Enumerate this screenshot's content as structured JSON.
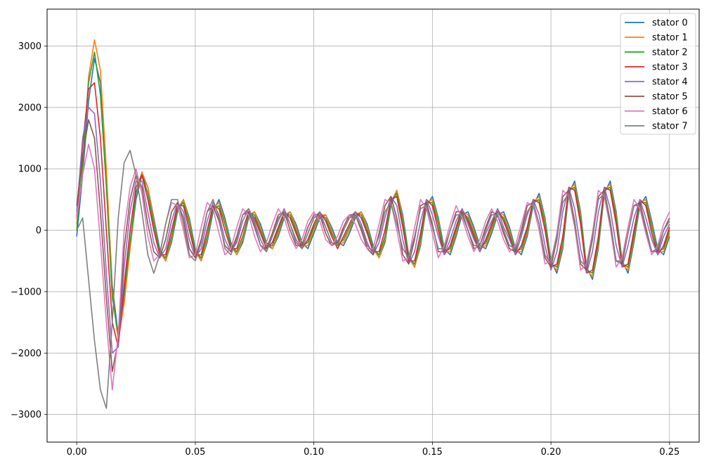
{
  "chart_data": {
    "type": "line",
    "title": "",
    "xlabel": "",
    "ylabel": "",
    "xlim": [
      -0.0125,
      0.2625
    ],
    "ylim": [
      -3450,
      3600
    ],
    "xticks": [
      0.0,
      0.05,
      0.1,
      0.15,
      0.2,
      0.25
    ],
    "xtick_labels": [
      "0.00",
      "0.05",
      "0.10",
      "0.15",
      "0.20",
      "0.25"
    ],
    "yticks": [
      -3000,
      -2000,
      -1000,
      0,
      1000,
      2000,
      3000
    ],
    "ytick_labels": [
      "−3000",
      "−2000",
      "−1000",
      "0",
      "1000",
      "2000",
      "3000"
    ],
    "grid": true,
    "legend_position": "top-right",
    "x": [
      0.0,
      0.0025,
      0.005,
      0.0075,
      0.01,
      0.0125,
      0.015,
      0.0175,
      0.02,
      0.0225,
      0.025,
      0.0275,
      0.03,
      0.0325,
      0.035,
      0.0375,
      0.04,
      0.0425,
      0.045,
      0.0475,
      0.05,
      0.0525,
      0.055,
      0.0575,
      0.06,
      0.0625,
      0.065,
      0.0675,
      0.07,
      0.0725,
      0.075,
      0.0775,
      0.08,
      0.0825,
      0.085,
      0.0875,
      0.09,
      0.0925,
      0.095,
      0.0975,
      0.1,
      0.1025,
      0.105,
      0.1075,
      0.11,
      0.1125,
      0.115,
      0.1175,
      0.12,
      0.1225,
      0.125,
      0.1275,
      0.13,
      0.1325,
      0.135,
      0.1375,
      0.14,
      0.1425,
      0.145,
      0.1475,
      0.15,
      0.1525,
      0.155,
      0.1575,
      0.16,
      0.1625,
      0.165,
      0.1675,
      0.17,
      0.1725,
      0.175,
      0.1775,
      0.18,
      0.1825,
      0.185,
      0.1875,
      0.19,
      0.1925,
      0.195,
      0.1975,
      0.2,
      0.2025,
      0.205,
      0.2075,
      0.21,
      0.2125,
      0.215,
      0.2175,
      0.22,
      0.2225,
      0.225,
      0.2275,
      0.23,
      0.2325,
      0.235,
      0.2375,
      0.24,
      0.2425,
      0.245,
      0.2475,
      0.25
    ],
    "series": [
      {
        "name": "stator 0",
        "color": "#1f77b4",
        "values": [
          -100,
          900,
          2100,
          2800,
          2400,
          900,
          -900,
          -1700,
          -1100,
          -300,
          500,
          900,
          700,
          200,
          -300,
          -500,
          -200,
          300,
          500,
          200,
          -300,
          -500,
          -200,
          300,
          500,
          200,
          -200,
          -400,
          -200,
          200,
          300,
          100,
          -200,
          -300,
          -100,
          200,
          300,
          100,
          -200,
          -300,
          -50,
          200,
          250,
          50,
          -200,
          -250,
          -50,
          200,
          300,
          100,
          -250,
          -450,
          -200,
          400,
          650,
          250,
          -400,
          -600,
          -250,
          400,
          550,
          200,
          -300,
          -400,
          -100,
          250,
          300,
          50,
          -250,
          -300,
          -50,
          250,
          300,
          50,
          -300,
          -400,
          -100,
          400,
          600,
          200,
          -500,
          -700,
          -300,
          600,
          800,
          300,
          -600,
          -800,
          -300,
          600,
          800,
          300,
          -500,
          -700,
          -200,
          400,
          550,
          150,
          -300,
          -400,
          -100
        ]
      },
      {
        "name": "stator 1",
        "color": "#ff7f0e",
        "values": [
          100,
          1000,
          2500,
          3100,
          2600,
          1000,
          -1000,
          -1800,
          -1200,
          -300,
          600,
          950,
          700,
          150,
          -350,
          -500,
          -150,
          350,
          500,
          150,
          -350,
          -500,
          -150,
          350,
          450,
          150,
          -250,
          -400,
          -150,
          250,
          300,
          50,
          -250,
          -300,
          -50,
          250,
          300,
          50,
          -250,
          -250,
          0,
          250,
          250,
          0,
          -250,
          -200,
          0,
          250,
          300,
          50,
          -300,
          -450,
          -150,
          450,
          650,
          200,
          -450,
          -600,
          -200,
          450,
          500,
          150,
          -350,
          -350,
          -50,
          300,
          250,
          0,
          -300,
          -250,
          0,
          300,
          250,
          0,
          -350,
          -350,
          -50,
          450,
          550,
          150,
          -550,
          -650,
          -250,
          650,
          750,
          250,
          -650,
          -750,
          -250,
          650,
          750,
          250,
          -550,
          -650,
          -150,
          450,
          500,
          100,
          -350,
          -350,
          -50
        ]
      },
      {
        "name": "stator 2",
        "color": "#2ca02c",
        "values": [
          0,
          1100,
          2400,
          2900,
          2200,
          700,
          -1100,
          -1700,
          -1000,
          -200,
          600,
          900,
          600,
          100,
          -350,
          -450,
          -100,
          350,
          450,
          100,
          -350,
          -450,
          -100,
          350,
          400,
          100,
          -250,
          -350,
          -100,
          250,
          250,
          0,
          -250,
          -250,
          0,
          250,
          250,
          0,
          -250,
          -200,
          50,
          250,
          200,
          -50,
          -250,
          -150,
          50,
          250,
          250,
          0,
          -300,
          -400,
          -100,
          450,
          600,
          150,
          -450,
          -550,
          -150,
          450,
          450,
          100,
          -350,
          -300,
          0,
          300,
          200,
          -50,
          -300,
          -200,
          50,
          300,
          200,
          -50,
          -350,
          -300,
          0,
          450,
          500,
          100,
          -550,
          -600,
          -200,
          650,
          700,
          200,
          -650,
          -700,
          -200,
          650,
          700,
          200,
          -550,
          -600,
          -100,
          450,
          450,
          50,
          -350,
          -300,
          0
        ]
      },
      {
        "name": "stator 3",
        "color": "#d62728",
        "values": [
          200,
          1400,
          2300,
          2400,
          1500,
          0,
          -1500,
          -1900,
          -900,
          0,
          700,
          900,
          500,
          0,
          -400,
          -400,
          0,
          400,
          400,
          0,
          -400,
          -400,
          0,
          400,
          350,
          0,
          -300,
          -300,
          0,
          300,
          200,
          -50,
          -300,
          -200,
          50,
          300,
          200,
          -50,
          -300,
          -150,
          100,
          300,
          150,
          -100,
          -300,
          -100,
          100,
          300,
          200,
          -50,
          -350,
          -350,
          0,
          500,
          550,
          50,
          -500,
          -500,
          -50,
          500,
          400,
          0,
          -400,
          -250,
          50,
          350,
          150,
          -100,
          -350,
          -150,
          100,
          350,
          150,
          -100,
          -400,
          -250,
          50,
          500,
          450,
          0,
          -600,
          -550,
          -100,
          700,
          650,
          100,
          -700,
          -650,
          -100,
          700,
          650,
          100,
          -600,
          -550,
          0,
          500,
          400,
          -50,
          -400,
          -250,
          50
        ]
      },
      {
        "name": "stator 4",
        "color": "#9467bd",
        "values": [
          300,
          1500,
          2000,
          1900,
          800,
          -700,
          -2000,
          -1900,
          -600,
          300,
          800,
          800,
          300,
          -200,
          -450,
          -300,
          150,
          450,
          300,
          -150,
          -450,
          -300,
          150,
          450,
          250,
          -150,
          -350,
          -200,
          150,
          350,
          150,
          -150,
          -350,
          -100,
          150,
          350,
          100,
          -150,
          -300,
          -50,
          200,
          300,
          50,
          -200,
          -250,
          0,
          200,
          300,
          100,
          -200,
          -400,
          -200,
          200,
          550,
          400,
          -150,
          -550,
          -350,
          150,
          500,
          250,
          -100,
          -400,
          -150,
          150,
          350,
          100,
          -150,
          -350,
          -50,
          150,
          350,
          50,
          -150,
          -400,
          -100,
          250,
          500,
          250,
          -250,
          -650,
          -350,
          300,
          700,
          350,
          -300,
          -700,
          -350,
          300,
          700,
          350,
          -250,
          -600,
          -250,
          200,
          500,
          200,
          -150,
          -400,
          -100,
          100
        ]
      },
      {
        "name": "stator 5",
        "color": "#8c564b",
        "values": [
          400,
          1200,
          1800,
          1500,
          300,
          -1100,
          -2300,
          -1800,
          -300,
          500,
          900,
          700,
          100,
          -350,
          -450,
          -150,
          300,
          450,
          200,
          -300,
          -450,
          -150,
          300,
          400,
          150,
          -250,
          -350,
          -100,
          250,
          300,
          50,
          -250,
          -300,
          -50,
          250,
          300,
          0,
          -250,
          -250,
          50,
          250,
          250,
          -50,
          -250,
          -200,
          50,
          250,
          250,
          0,
          -300,
          -400,
          -50,
          400,
          550,
          200,
          -400,
          -550,
          -150,
          400,
          450,
          100,
          -350,
          -350,
          0,
          300,
          300,
          0,
          -300,
          -250,
          50,
          300,
          250,
          -50,
          -300,
          -350,
          0,
          400,
          450,
          100,
          -450,
          -600,
          -150,
          550,
          650,
          150,
          -550,
          -650,
          -150,
          550,
          650,
          150,
          -500,
          -550,
          -50,
          400,
          450,
          50,
          -350,
          -350,
          0,
          200
        ]
      },
      {
        "name": "stator 6",
        "color": "#e377c2",
        "values": [
          200,
          900,
          1400,
          1000,
          -200,
          -1500,
          -2600,
          -1700,
          0,
          700,
          1000,
          600,
          -100,
          -500,
          -400,
          100,
          450,
          400,
          0,
          -450,
          -400,
          50,
          450,
          350,
          -50,
          -400,
          -300,
          50,
          350,
          250,
          -100,
          -350,
          -200,
          100,
          350,
          200,
          -100,
          -300,
          -150,
          150,
          300,
          150,
          -150,
          -250,
          -100,
          150,
          250,
          100,
          -150,
          -300,
          -300,
          100,
          500,
          450,
          0,
          -500,
          -450,
          50,
          500,
          350,
          -50,
          -450,
          -250,
          100,
          400,
          200,
          -100,
          -350,
          -150,
          150,
          350,
          150,
          -150,
          -350,
          -250,
          100,
          450,
          400,
          0,
          -550,
          -500,
          -50,
          650,
          550,
          50,
          -650,
          -550,
          -50,
          650,
          550,
          50,
          -600,
          -450,
          50,
          500,
          350,
          -50,
          -400,
          -250,
          100,
          300
        ]
      },
      {
        "name": "stator 7",
        "color": "#7f7f7f",
        "values": [
          0,
          200,
          -800,
          -1800,
          -2600,
          -2900,
          -1500,
          200,
          1100,
          1300,
          900,
          300,
          -400,
          -700,
          -400,
          100,
          500,
          500,
          100,
          -400,
          -500,
          -200,
          300,
          500,
          200,
          -300,
          -400,
          -150,
          250,
          350,
          100,
          -250,
          -350,
          -100,
          200,
          300,
          100,
          -200,
          -300,
          -50,
          200,
          250,
          50,
          -200,
          -250,
          0,
          200,
          250,
          50,
          -250,
          -350,
          -100,
          300,
          450,
          100,
          -300,
          -450,
          -100,
          350,
          400,
          50,
          -300,
          -300,
          0,
          250,
          250,
          0,
          -250,
          -250,
          0,
          250,
          250,
          0,
          -250,
          -300,
          -50,
          300,
          450,
          100,
          -400,
          -550,
          -100,
          450,
          600,
          100,
          -500,
          -600,
          -100,
          500,
          600,
          100,
          -500,
          -500,
          -50,
          400,
          400,
          0,
          -350,
          -300,
          0,
          150
        ]
      }
    ]
  }
}
